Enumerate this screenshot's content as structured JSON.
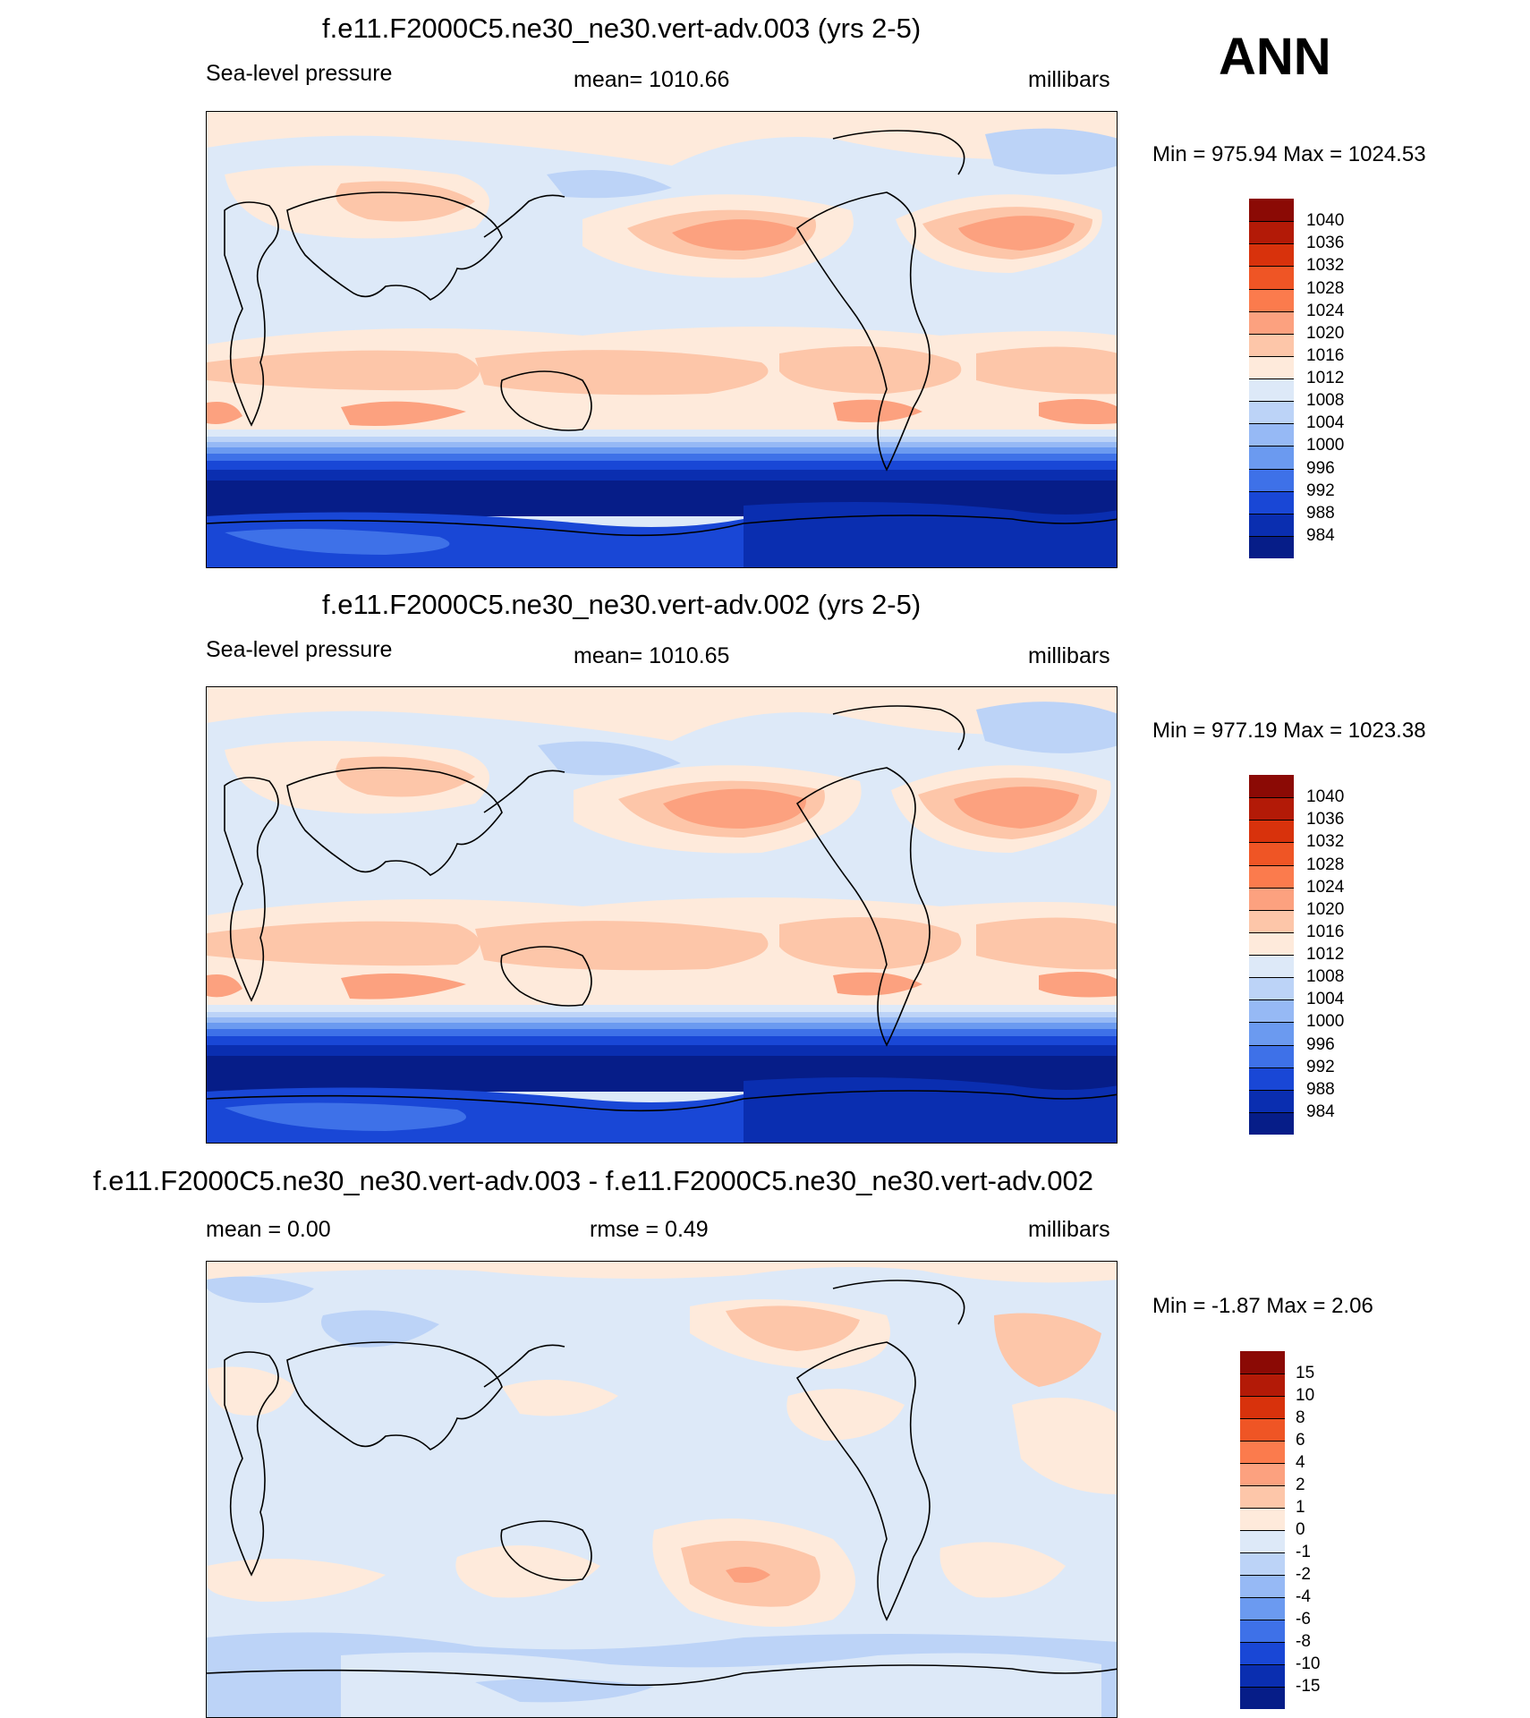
{
  "season": "ANN",
  "panels": [
    {
      "title": "f.e11.F2000C5.ne30_ne30.vert-adv.003 (yrs 2-5)",
      "left_label": "Sea-level pressure",
      "center_label": "mean= 1010.66",
      "right_label": "millibars",
      "minmax": "Min = 975.94 Max = 1024.53"
    },
    {
      "title": "f.e11.F2000C5.ne30_ne30.vert-adv.002 (yrs 2-5)",
      "left_label": "Sea-level pressure",
      "center_label": "mean= 1010.65",
      "right_label": "millibars",
      "minmax": "Min = 977.19 Max = 1023.38"
    },
    {
      "title": "f.e11.F2000C5.ne30_ne30.vert-adv.003 - f.e11.F2000C5.ne30_ne30.vert-adv.002",
      "left_label": "mean =   0.00",
      "center_label": "rmse =   0.49",
      "right_label": "millibars",
      "minmax": "Min =  -1.87 Max =   2.06"
    }
  ],
  "colorbars": {
    "slp": {
      "labels": [
        "1040",
        "1036",
        "1032",
        "1028",
        "1024",
        "1020",
        "1016",
        "1012",
        "1008",
        "1004",
        "1000",
        "996",
        "992",
        "988",
        "984"
      ],
      "colors": [
        "#8b0a05",
        "#b31a07",
        "#d8320c",
        "#ef5525",
        "#fb7b4d",
        "#fca17f",
        "#fdc6a9",
        "#feeadb",
        "#dde9f8",
        "#bcd3f7",
        "#96b9f5",
        "#6b9af0",
        "#3e71e8",
        "#1947d6",
        "#0a2eb0",
        "#061d88"
      ]
    },
    "diff": {
      "labels": [
        "15",
        "10",
        "8",
        "6",
        "4",
        "2",
        "1",
        "0",
        "-1",
        "-2",
        "-4",
        "-6",
        "-8",
        "-10",
        "-15"
      ],
      "colors": [
        "#8b0a05",
        "#b31a07",
        "#d8320c",
        "#ef5525",
        "#fb7b4d",
        "#fca17f",
        "#fdc6a9",
        "#feeadb",
        "#dde9f8",
        "#bcd3f7",
        "#96b9f5",
        "#6b9af0",
        "#3e71e8",
        "#1947d6",
        "#0a2eb0",
        "#061d88"
      ]
    }
  }
}
